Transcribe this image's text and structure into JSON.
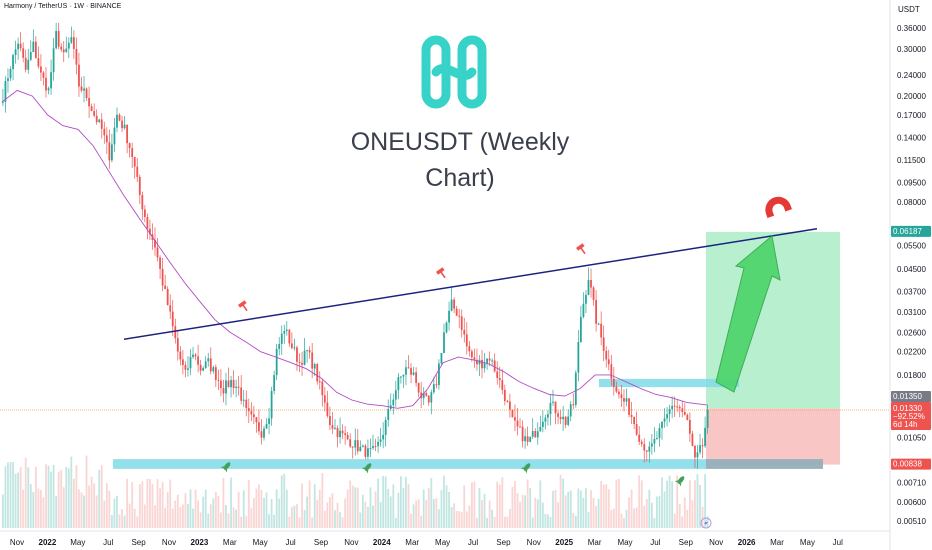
{
  "header": {
    "symbol_line": "Harmony / TetherUS · 1W · BINANCE",
    "chart_title": "ONEUSDT (Weekly Chart)"
  },
  "colors": {
    "up": "#26a69a",
    "down": "#ef5350",
    "ma": "#b04cc4",
    "trendline": "#1a237e",
    "support_zone": "#7fdbe8",
    "target_zone": "#b8f0cf",
    "stop_zone": "#f9c6c6",
    "arrow": "#4cd46a",
    "logo": "#38d3c8"
  },
  "icons": {
    "breakout_marker": "hammer-icon",
    "bounce_marker": "rocket-icon",
    "target_marker": "magnet-icon",
    "lightning": "lightning-icon"
  },
  "chart_data": {
    "type": "candlestick",
    "title": "ONEUSDT (Weekly Chart)",
    "exchange": "BINANCE",
    "interval": "1W",
    "price_axis": {
      "unit": "USDT",
      "scale": "log",
      "ticks": [
        "0.36000",
        "0.30000",
        "0.24000",
        "0.20000",
        "0.17000",
        "0.14000",
        "0.11500",
        "0.09500",
        "0.08000",
        "0.05500",
        "0.04500",
        "0.03700",
        "0.03100",
        "0.02600",
        "0.02200",
        "0.01800",
        "0.01050",
        "0.00710",
        "0.00600",
        "0.00510"
      ]
    },
    "time_axis": {
      "ticks": [
        "Nov",
        "2022",
        "May",
        "Jul",
        "Sep",
        "Nov",
        "2023",
        "Mar",
        "May",
        "Jul",
        "Sep",
        "Nov",
        "2024",
        "Mar",
        "May",
        "Jul",
        "Sep",
        "Nov",
        "2025",
        "Mar",
        "May",
        "Jul",
        "Sep",
        "Nov",
        "2026",
        "Mar",
        "May",
        "Jul"
      ]
    },
    "price_labels": {
      "target": "0.06187",
      "current_grey": "0.01350",
      "last_price": "0.01330",
      "change": "−92.52%",
      "countdown": "6d 14h",
      "support": "0.00838"
    },
    "overlays": {
      "trendline": {
        "from": [
          "2022-06",
          0.0245
        ],
        "to": [
          "2025-10",
          0.0636
        ]
      },
      "support_zone": {
        "low": 0.008,
        "high": 0.0087
      },
      "resistance_box": {
        "low": 0.0162,
        "high": 0.0174
      },
      "long_position": {
        "entry": 0.0135,
        "target": 0.0619,
        "stop": 0.0083
      }
    },
    "waypoints": [
      [
        0,
        0.2
      ],
      [
        3,
        0.26
      ],
      [
        6,
        0.32
      ],
      [
        9,
        0.25
      ],
      [
        12,
        0.31
      ],
      [
        15,
        0.24
      ],
      [
        18,
        0.21
      ],
      [
        21,
        0.34
      ],
      [
        24,
        0.28
      ],
      [
        27,
        0.33
      ],
      [
        30,
        0.22
      ],
      [
        33,
        0.2
      ],
      [
        36,
        0.17
      ],
      [
        39,
        0.15
      ],
      [
        42,
        0.12
      ],
      [
        45,
        0.17
      ],
      [
        48,
        0.15
      ],
      [
        51,
        0.12
      ],
      [
        54,
        0.085
      ],
      [
        57,
        0.065
      ],
      [
        60,
        0.055
      ],
      [
        63,
        0.04
      ],
      [
        66,
        0.03
      ],
      [
        69,
        0.022
      ],
      [
        72,
        0.018
      ],
      [
        75,
        0.022
      ],
      [
        78,
        0.019
      ],
      [
        81,
        0.02
      ],
      [
        84,
        0.018
      ],
      [
        87,
        0.016
      ],
      [
        90,
        0.017
      ],
      [
        93,
        0.016
      ],
      [
        96,
        0.013
      ],
      [
        99,
        0.012
      ],
      [
        102,
        0.011
      ],
      [
        105,
        0.013
      ],
      [
        108,
        0.022
      ],
      [
        111,
        0.027
      ],
      [
        114,
        0.023
      ],
      [
        117,
        0.02
      ],
      [
        120,
        0.022
      ],
      [
        123,
        0.019
      ],
      [
        126,
        0.015
      ],
      [
        129,
        0.012
      ],
      [
        132,
        0.011
      ],
      [
        135,
        0.0105
      ],
      [
        138,
        0.01
      ],
      [
        141,
        0.0095
      ],
      [
        144,
        0.0092
      ],
      [
        147,
        0.0093
      ],
      [
        150,
        0.011
      ],
      [
        153,
        0.014
      ],
      [
        156,
        0.017
      ],
      [
        159,
        0.019
      ],
      [
        162,
        0.018
      ],
      [
        165,
        0.015
      ],
      [
        168,
        0.014
      ],
      [
        171,
        0.017
      ],
      [
        174,
        0.026
      ],
      [
        177,
        0.033
      ],
      [
        180,
        0.03
      ],
      [
        183,
        0.023
      ],
      [
        186,
        0.02
      ],
      [
        189,
        0.02
      ],
      [
        192,
        0.021
      ],
      [
        195,
        0.018
      ],
      [
        198,
        0.015
      ],
      [
        201,
        0.012
      ],
      [
        204,
        0.011
      ],
      [
        207,
        0.01
      ],
      [
        210,
        0.011
      ],
      [
        213,
        0.0125
      ],
      [
        216,
        0.014
      ],
      [
        219,
        0.013
      ],
      [
        222,
        0.012
      ],
      [
        225,
        0.014
      ],
      [
        228,
        0.03
      ],
      [
        231,
        0.042
      ],
      [
        234,
        0.029
      ],
      [
        237,
        0.023
      ],
      [
        240,
        0.018
      ],
      [
        243,
        0.015
      ],
      [
        246,
        0.014
      ],
      [
        249,
        0.012
      ],
      [
        252,
        0.01
      ],
      [
        255,
        0.0093
      ],
      [
        258,
        0.0105
      ],
      [
        261,
        0.012
      ],
      [
        264,
        0.014
      ],
      [
        267,
        0.0135
      ],
      [
        270,
        0.012
      ],
      [
        273,
        0.0085
      ],
      [
        276,
        0.0098
      ],
      [
        278,
        0.0133
      ]
    ],
    "moving_average": [
      [
        0,
        0.19
      ],
      [
        6,
        0.21
      ],
      [
        12,
        0.2
      ],
      [
        18,
        0.17
      ],
      [
        24,
        0.155
      ],
      [
        30,
        0.15
      ],
      [
        36,
        0.13
      ],
      [
        42,
        0.105
      ],
      [
        48,
        0.085
      ],
      [
        54,
        0.07
      ],
      [
        60,
        0.058
      ],
      [
        66,
        0.048
      ],
      [
        72,
        0.04
      ],
      [
        78,
        0.034
      ],
      [
        84,
        0.029
      ],
      [
        90,
        0.026
      ],
      [
        96,
        0.024
      ],
      [
        102,
        0.022
      ],
      [
        108,
        0.021
      ],
      [
        114,
        0.02
      ],
      [
        120,
        0.019
      ],
      [
        126,
        0.0175
      ],
      [
        132,
        0.0155
      ],
      [
        138,
        0.0145
      ],
      [
        144,
        0.014
      ],
      [
        150,
        0.0138
      ],
      [
        156,
        0.0135
      ],
      [
        162,
        0.0138
      ],
      [
        168,
        0.016
      ],
      [
        174,
        0.02
      ],
      [
        180,
        0.021
      ],
      [
        186,
        0.0205
      ],
      [
        192,
        0.0198
      ],
      [
        198,
        0.0185
      ],
      [
        204,
        0.017
      ],
      [
        210,
        0.016
      ],
      [
        216,
        0.0152
      ],
      [
        222,
        0.015
      ],
      [
        228,
        0.016
      ],
      [
        234,
        0.018
      ],
      [
        240,
        0.018
      ],
      [
        246,
        0.017
      ],
      [
        252,
        0.016
      ],
      [
        258,
        0.0152
      ],
      [
        264,
        0.0148
      ],
      [
        270,
        0.0142
      ],
      [
        278,
        0.0139
      ]
    ]
  }
}
